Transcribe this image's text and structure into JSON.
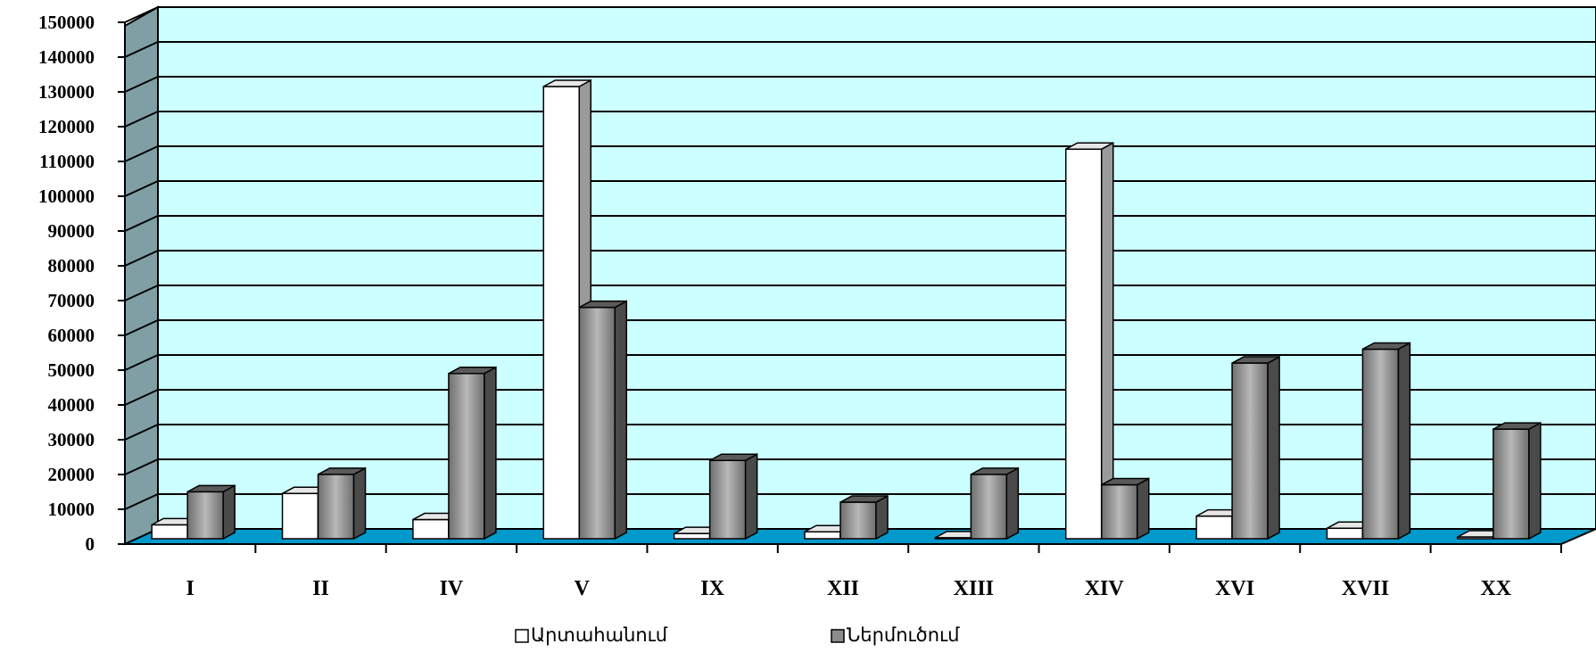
{
  "chart_data": {
    "type": "bar",
    "title": "",
    "xlabel": "",
    "ylabel": "",
    "ylim": [
      0,
      150000
    ],
    "yticks": [
      "0",
      "10000",
      "20000",
      "30000",
      "40000",
      "50000",
      "60000",
      "70000",
      "80000",
      "90000",
      "100000",
      "110000",
      "120000",
      "130000",
      "140000",
      "150000"
    ],
    "categories": [
      "I",
      "II",
      "IV",
      "V",
      "IX",
      "XII",
      "XIII",
      "XIV",
      "XVI",
      "XVII",
      "XX"
    ],
    "series": [
      {
        "name": "Արտահանում",
        "color": "#ffffff",
        "values": [
          4000,
          13000,
          5500,
          130000,
          1500,
          2000,
          300,
          112000,
          6500,
          3000,
          500
        ]
      },
      {
        "name": "Ներմուծում",
        "color": "#8c8c8c",
        "values": [
          13500,
          18500,
          47500,
          66500,
          22500,
          10500,
          18500,
          15500,
          50500,
          54500,
          31500
        ]
      }
    ],
    "grid": true,
    "legend_position": "bottom",
    "colors": {
      "plot_bg": "#ccffff",
      "floor": "#0099cc",
      "side_wall": "#7f9fa5"
    }
  }
}
